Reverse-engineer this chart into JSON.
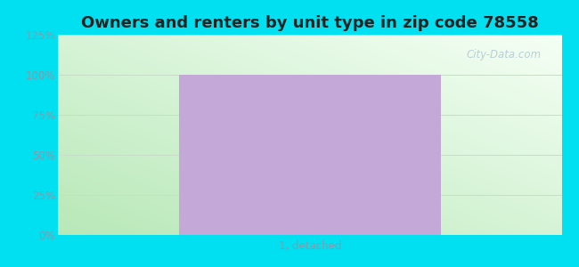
{
  "title": "Owners and renters by unit type in zip code 78558",
  "categories": [
    "1, detached"
  ],
  "values": [
    100
  ],
  "bar_color": "#c4a8d8",
  "ylim": [
    0,
    125
  ],
  "yticks": [
    0,
    25,
    50,
    75,
    100,
    125
  ],
  "ytick_labels": [
    "0%",
    "25%",
    "50%",
    "75%",
    "100%",
    "125%"
  ],
  "outer_bg": "#00e0f0",
  "title_fontsize": 13,
  "tick_fontsize": 8.5,
  "title_color": "#222222",
  "tick_color": "#8899aa",
  "grid_color": "#c8ddc8",
  "watermark_text": "City-Data.com",
  "bar_width": 0.52
}
